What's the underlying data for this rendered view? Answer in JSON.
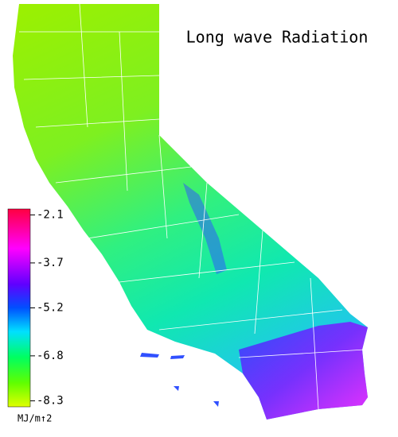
{
  "title": "Long wave Radiation",
  "colorbar": {
    "limits": [
      -8.5,
      -1.9
    ],
    "ticks": [
      -2.1,
      -3.7,
      -5.2,
      -6.8,
      -8.3
    ],
    "unit": "MJ/m↑2"
  }
}
